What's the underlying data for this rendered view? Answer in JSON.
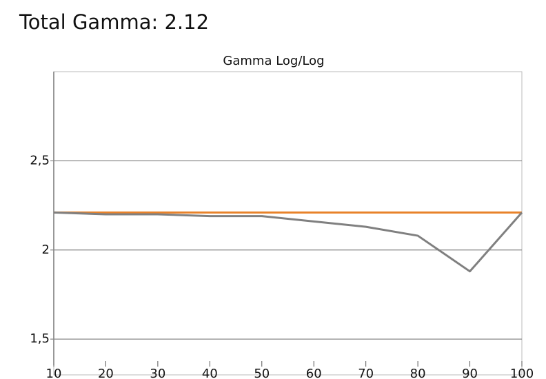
{
  "title": "Total Gamma: 2.12",
  "chart_data": {
    "type": "line",
    "title": "Gamma Log/Log",
    "x": [
      10,
      20,
      30,
      40,
      50,
      60,
      70,
      80,
      90,
      100
    ],
    "series": [
      {
        "color": "#e8822a",
        "values": [
          2.21,
          2.21,
          2.21,
          2.21,
          2.21,
          2.21,
          2.21,
          2.21,
          2.21,
          2.21
        ]
      },
      {
        "color": "#808080",
        "values": [
          2.21,
          2.2,
          2.2,
          2.19,
          2.19,
          2.16,
          2.13,
          2.08,
          1.88,
          2.21
        ]
      }
    ],
    "xlim": [
      10,
      100
    ],
    "xticks": [
      10,
      20,
      30,
      40,
      50,
      60,
      70,
      80,
      90,
      100
    ],
    "ylim": [
      1.4,
      3.0
    ],
    "yticks": [
      {
        "value": 1.5,
        "label": "1,5"
      },
      2,
      {
        "value": 2.5,
        "label": "2,5"
      }
    ],
    "grid": true
  }
}
